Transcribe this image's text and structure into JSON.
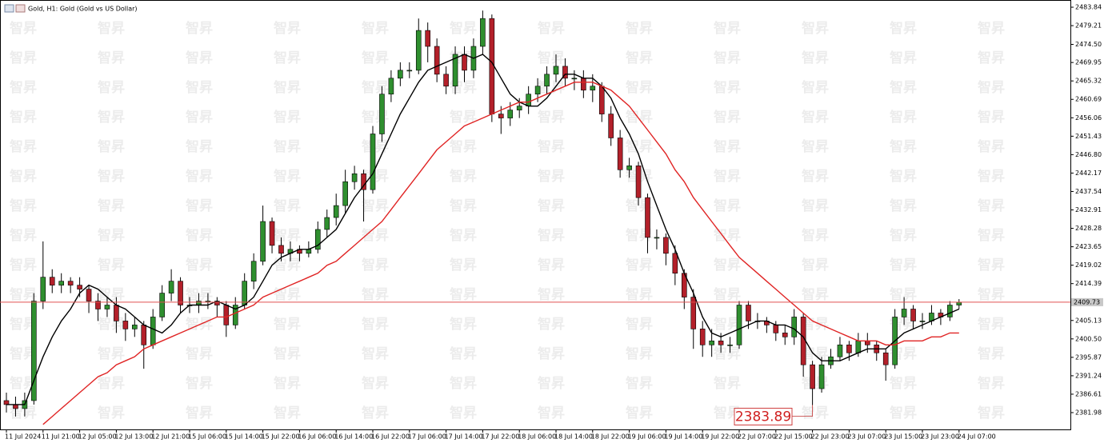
{
  "chart_data": {
    "type": "candlestick",
    "title": "Gold, H1:  Gold (Gold vs US Dollar)",
    "watermark": "智昇",
    "x": [
      "11 Jul 2024",
      null,
      null,
      null,
      "11 Jul 21:00",
      null,
      null,
      null,
      "12 Jul 05:00",
      null,
      null,
      null,
      "12 Jul 13:00",
      null,
      null,
      null,
      "12 Jul 21:00",
      null,
      null,
      null,
      "15 Jul 06:00",
      null,
      null,
      null,
      "15 Jul 14:00",
      null,
      null,
      null,
      "15 Jul 22:00",
      null,
      null,
      null,
      "16 Jul 06:00",
      null,
      null,
      null,
      "16 Jul 14:00",
      null,
      null,
      null,
      "16 Jul 22:00",
      null,
      null,
      null,
      "17 Jul 06:00",
      null,
      null,
      null,
      "17 Jul 14:00",
      null,
      null,
      null,
      "17 Jul 22:00",
      null,
      null,
      null,
      "18 Jul 06:00",
      null,
      null,
      null,
      "18 Jul 14:00",
      null,
      null,
      null,
      "18 Jul 22:00",
      null,
      null,
      null,
      "19 Jul 06:00",
      null,
      null,
      null,
      "19 Jul 14:00",
      null,
      null,
      null,
      "19 Jul 22:00",
      null,
      null,
      null,
      "22 Jul 07:00",
      null,
      null,
      null,
      "22 Jul 15:00",
      null,
      null,
      null,
      "22 Jul 23:00",
      null,
      null,
      null,
      "23 Jul 07:00",
      null,
      null,
      null,
      "23 Jul 15:00",
      null,
      null,
      null,
      "23 Jul 23:00",
      null,
      null,
      null,
      "24 Jul 07:00"
    ],
    "open": [
      2385,
      2384,
      2383,
      2385,
      2410,
      2416,
      2414,
      2415,
      2414,
      2413,
      2410,
      2408,
      2409,
      2405,
      2403,
      2404,
      2399,
      2406,
      2412,
      2415,
      2409,
      2409,
      2410,
      2410,
      2409,
      2404,
      2409,
      2415,
      2420,
      2430,
      2424,
      2422,
      2423,
      2422,
      2423,
      2428,
      2431,
      2434,
      2440,
      2442,
      2438,
      2452,
      2462,
      2466,
      2468,
      2468,
      2478,
      2474,
      2467,
      2464,
      2472,
      2468,
      2474,
      2481,
      2457,
      2456,
      2458,
      2459,
      2462,
      2464,
      2467,
      2469,
      2466,
      2466,
      2463,
      2464,
      2457,
      2451,
      2443,
      2444,
      2436,
      2426,
      2426,
      2422,
      2417,
      2411,
      2403,
      2399,
      2400,
      2399,
      2399,
      2409,
      2405,
      2405,
      2404,
      2402,
      2401,
      2406,
      2394,
      2388,
      2394,
      2396,
      2399,
      2397,
      2400,
      2399,
      2397,
      2394,
      2406,
      2408,
      2405,
      2405,
      2407,
      2406,
      2409
    ],
    "high": [
      2387,
      2386,
      2387,
      2412,
      2425,
      2418,
      2417,
      2416,
      2416,
      2414,
      2412,
      2411,
      2411,
      2407,
      2406,
      2405,
      2408,
      2414,
      2418,
      2416,
      2411,
      2412,
      2412,
      2411,
      2410,
      2411,
      2417,
      2422,
      2434,
      2431,
      2426,
      2425,
      2424,
      2425,
      2430,
      2433,
      2437,
      2443,
      2444,
      2443,
      2454,
      2464,
      2468,
      2470,
      2470,
      2481,
      2480,
      2476,
      2469,
      2474,
      2474,
      2476,
      2483,
      2482,
      2459,
      2460,
      2461,
      2464,
      2466,
      2469,
      2472,
      2471,
      2468,
      2468,
      2467,
      2465,
      2459,
      2453,
      2446,
      2445,
      2437,
      2428,
      2427,
      2424,
      2418,
      2413,
      2405,
      2403,
      2402,
      2401,
      2410,
      2410,
      2407,
      2406,
      2405,
      2404,
      2408,
      2407,
      2395,
      2396,
      2398,
      2401,
      2400,
      2402,
      2402,
      2400,
      2398,
      2408,
      2411,
      2409,
      2407,
      2409,
      2408,
      2410,
      2410.5
    ],
    "low": [
      2382,
      2381,
      2381,
      2384,
      2408,
      2412,
      2412,
      2412,
      2411,
      2407,
      2405,
      2406,
      2402,
      2400,
      2401,
      2393,
      2398,
      2405,
      2410,
      2407,
      2407,
      2407,
      2408,
      2406,
      2401,
      2403,
      2408,
      2413,
      2419,
      2422,
      2420,
      2420,
      2420,
      2421,
      2422,
      2426,
      2429,
      2432,
      2438,
      2430,
      2437,
      2450,
      2460,
      2464,
      2466,
      2467,
      2470,
      2465,
      2462,
      2462,
      2465,
      2466,
      2472,
      2455,
      2452,
      2454,
      2456,
      2457,
      2460,
      2462,
      2465,
      2464,
      2463,
      2461,
      2460,
      2455,
      2449,
      2441,
      2441,
      2434,
      2422,
      2423,
      2419,
      2414,
      2408,
      2398,
      2396,
      2396,
      2397,
      2397,
      2398,
      2403,
      2403,
      2402,
      2400,
      2399,
      2399,
      2391,
      2383.89,
      2387,
      2393,
      2395,
      2395,
      2396,
      2397,
      2395,
      2390,
      2393,
      2404,
      2403,
      2403,
      2404,
      2404,
      2405,
      2408
    ],
    "close": [
      2384,
      2383,
      2385,
      2410,
      2416,
      2414,
      2415,
      2414,
      2413,
      2410,
      2408,
      2409,
      2405,
      2403,
      2404,
      2399,
      2406,
      2412,
      2415,
      2409,
      2409,
      2410,
      2410,
      2409,
      2404,
      2409,
      2415,
      2420,
      2430,
      2424,
      2422,
      2423,
      2422,
      2423,
      2428,
      2431,
      2434,
      2440,
      2442,
      2438,
      2452,
      2462,
      2466,
      2468,
      2468,
      2478,
      2474,
      2467,
      2464,
      2472,
      2468,
      2474,
      2481,
      2457,
      2456,
      2458,
      2459,
      2462,
      2464,
      2467,
      2469,
      2466,
      2466,
      2463,
      2464,
      2457,
      2451,
      2443,
      2444,
      2436,
      2426,
      2426,
      2422,
      2417,
      2411,
      2403,
      2399,
      2400,
      2399,
      2399,
      2409,
      2405,
      2405,
      2404,
      2402,
      2401,
      2406,
      2394,
      2388,
      2394,
      2396,
      2399,
      2397,
      2400,
      2399,
      2397,
      2394,
      2406,
      2408,
      2405,
      2405,
      2407,
      2406,
      2409,
      2409.73
    ],
    "up_color": "#2f8f2f",
    "down_color": "#b3202a",
    "overlays": [
      {
        "color": "#000000",
        "values": [
          2384,
          2384,
          2384,
          2390,
          2396,
          2401,
          2405,
          2408,
          2412,
          2414,
          2413,
          2411,
          2409,
          2408,
          2406,
          2404,
          2403,
          2402,
          2404,
          2407,
          2409,
          2409,
          2409,
          2410,
          2409,
          2408,
          2409,
          2411,
          2415,
          2419,
          2421,
          2422,
          2423,
          2423,
          2424,
          2426,
          2428,
          2432,
          2436,
          2439,
          2442,
          2447,
          2452,
          2457,
          2461,
          2465,
          2468,
          2469,
          2470,
          2471,
          2472,
          2471,
          2472,
          2470,
          2466,
          2462,
          2460,
          2459,
          2459,
          2461,
          2464,
          2467,
          2467,
          2466,
          2466,
          2464,
          2461,
          2456,
          2452,
          2447,
          2440,
          2434,
          2428,
          2423,
          2417,
          2412,
          2406,
          2402,
          2401,
          2402,
          2403,
          2404,
          2405,
          2405,
          2404,
          2404,
          2403,
          2401,
          2397,
          2395,
          2395,
          2395,
          2396,
          2397,
          2398,
          2398,
          2398,
          2400,
          2402,
          2403,
          2404,
          2405,
          2406,
          2407,
          2408
        ]
      },
      {
        "color": "#e02424",
        "values": [
          null,
          null,
          null,
          null,
          2379,
          2381,
          2383,
          2385,
          2387,
          2389,
          2391,
          2392,
          2394,
          2395,
          2396,
          2398,
          2399,
          2400,
          2401,
          2402,
          2403,
          2404,
          2405,
          2406,
          2406,
          2407,
          2408,
          2409,
          2411,
          2412,
          2413,
          2414,
          2415,
          2416,
          2417,
          2419,
          2420,
          2422,
          2424,
          2426,
          2428,
          2430,
          2433,
          2436,
          2439,
          2442,
          2445,
          2448,
          2450,
          2452,
          2454,
          2455,
          2456,
          2457,
          2458,
          2459,
          2460,
          2460,
          2461,
          2462,
          2463,
          2464,
          2465,
          2465,
          2465,
          2464,
          2463,
          2461,
          2459,
          2456,
          2453,
          2450,
          2447,
          2443,
          2440,
          2436,
          2433,
          2430,
          2427,
          2424,
          2421,
          2419,
          2417,
          2415,
          2413,
          2411,
          2409,
          2407,
          2405,
          2404,
          2403,
          2402,
          2401,
          2400,
          2400,
          2400,
          2399,
          2399,
          2400,
          2400,
          2400,
          2401,
          2401,
          2402,
          2402
        ]
      }
    ],
    "current_price": 2409.73,
    "ylim": [
      2377.76,
      2485.05
    ],
    "yticks": [
      2483.84,
      2479.21,
      {
        "value": 2474.5,
        "label": "2474.50"
      },
      2469.95,
      2465.32,
      2460.69,
      2456.06,
      2451.43,
      {
        "value": 2446.8,
        "label": "2446.80"
      },
      2442.17,
      2437.54,
      2432.91,
      2428.28,
      2423.65,
      2419.02,
      2414.39,
      2405.13,
      {
        "value": 2400.5,
        "label": "2400.50"
      },
      2395.87,
      2391.24,
      2386.61,
      2381.98
    ]
  }
}
